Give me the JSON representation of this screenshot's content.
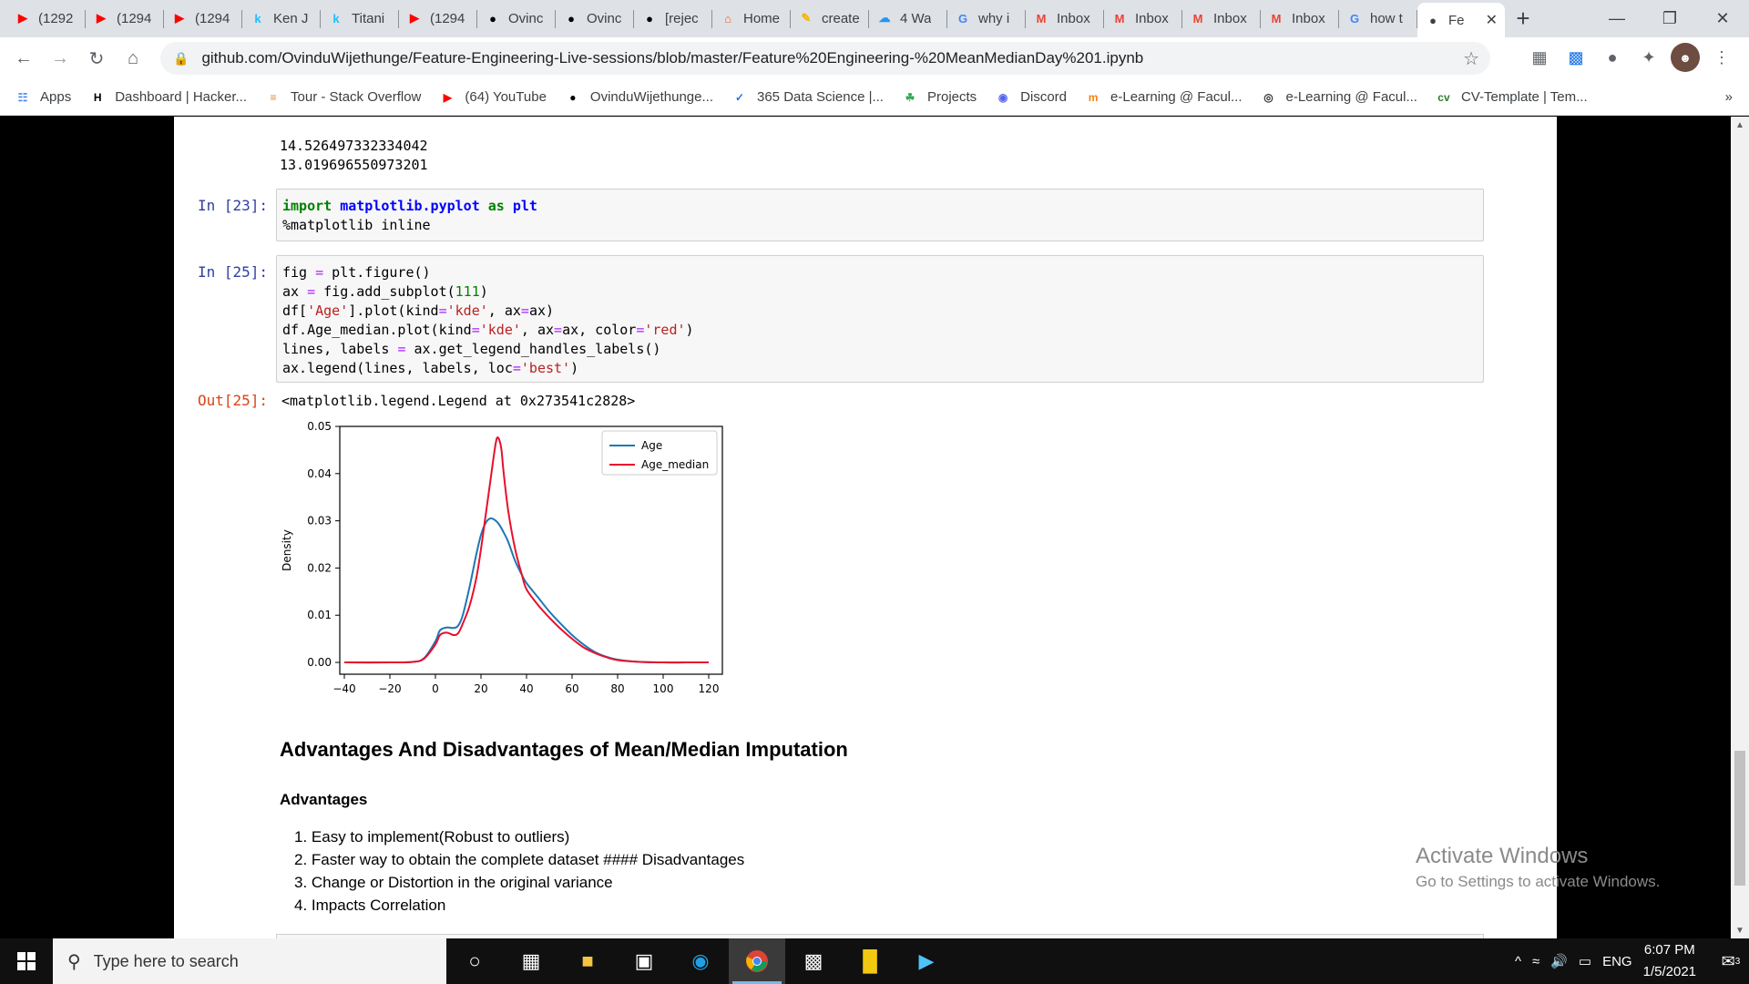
{
  "tabs": [
    {
      "icon": "youtube-icon",
      "label": "(1292",
      "color": "#ff0000"
    },
    {
      "icon": "youtube-icon",
      "label": "(1294",
      "color": "#ff0000"
    },
    {
      "icon": "youtube-icon",
      "label": "(1294",
      "color": "#ff0000"
    },
    {
      "icon": "kaggle-icon",
      "label": "Ken J",
      "color": "#20beff"
    },
    {
      "icon": "kaggle-icon",
      "label": "Titani",
      "color": "#20beff"
    },
    {
      "icon": "youtube-icon",
      "label": "(1294",
      "color": "#ff0000"
    },
    {
      "icon": "github-icon",
      "label": "Ovinc",
      "color": "#000000"
    },
    {
      "icon": "github-icon",
      "label": "Ovinc",
      "color": "#000000"
    },
    {
      "icon": "github-icon",
      "label": "[rejec",
      "color": "#000000"
    },
    {
      "icon": "home-icon",
      "label": "Home",
      "color": "#f26522"
    },
    {
      "icon": "edit-icon",
      "label": "create",
      "color": "#f4b400"
    },
    {
      "icon": "cloud-icon",
      "label": "4 Wa",
      "color": "#2196f3"
    },
    {
      "icon": "google-icon",
      "label": "why i",
      "color": "#4285f4"
    },
    {
      "icon": "gmail-icon",
      "label": "Inbox",
      "color": "#ea4335"
    },
    {
      "icon": "gmail-icon",
      "label": "Inbox",
      "color": "#ea4335"
    },
    {
      "icon": "gmail-icon",
      "label": "Inbox",
      "color": "#ea4335"
    },
    {
      "icon": "gmail-icon",
      "label": "Inbox",
      "color": "#ea4335"
    },
    {
      "icon": "google-icon",
      "label": "how t",
      "color": "#4285f4"
    }
  ],
  "active_tab": {
    "icon": "github-icon",
    "label": "Fe"
  },
  "address_bar": {
    "url": "github.com/OvinduWijethunge/Feature-Engineering-Live-sessions/blob/master/Feature%20Engineering-%20MeanMedianDay%201.ipynb"
  },
  "bookmarks": [
    {
      "icon": "apps-icon",
      "label": "Apps",
      "color": "#4285f4"
    },
    {
      "icon": "hackerrank-icon",
      "label": "Dashboard | Hacker...",
      "color": "#000000"
    },
    {
      "icon": "stackoverflow-icon",
      "label": "Tour - Stack Overflow",
      "color": "#f48024"
    },
    {
      "icon": "youtube-icon",
      "label": "(64) YouTube",
      "color": "#ff0000"
    },
    {
      "icon": "github-icon",
      "label": "OvinduWijethunge...",
      "color": "#000000"
    },
    {
      "icon": "datascience-icon",
      "label": "365 Data Science |...",
      "color": "#1a73e8"
    },
    {
      "icon": "projects-icon",
      "label": "Projects",
      "color": "#34a853"
    },
    {
      "icon": "discord-icon",
      "label": "Discord",
      "color": "#5865f2"
    },
    {
      "icon": "moodle-icon",
      "label": "e-Learning @ Facul...",
      "color": "#f98012"
    },
    {
      "icon": "globe-icon",
      "label": "e-Learning @ Facul...",
      "color": "#333333"
    },
    {
      "icon": "cv-icon",
      "label": "CV-Template | Tem...",
      "color": "#2e7d32"
    }
  ],
  "output_prev": [
    "14.526497332334042",
    "13.019696550973201"
  ],
  "cell23": {
    "prompt": "In [23]:"
  },
  "cell25": {
    "prompt": "In [25]:",
    "out_prompt": "Out[25]:",
    "out_text": "<matplotlib.legend.Legend at 0x273541c2828>"
  },
  "chart_data": {
    "type": "line",
    "title": "",
    "xlabel": "",
    "ylabel": "Density",
    "xlim": [
      -42,
      126
    ],
    "ylim": [
      -0.0025,
      0.05
    ],
    "xticks": [
      -40,
      -20,
      0,
      20,
      40,
      60,
      80,
      100,
      120
    ],
    "yticks": [
      0.0,
      0.01,
      0.02,
      0.03,
      0.04,
      0.05
    ],
    "ytick_labels": [
      "0.00",
      "0.01",
      "0.02",
      "0.03",
      "0.04",
      "0.05"
    ],
    "legend_position": "top-right",
    "series": [
      {
        "name": "Age",
        "color": "#1f77b4",
        "x": [
          -40,
          -20,
          -10,
          -5,
          0,
          2,
          5,
          8,
          10,
          12,
          15,
          18,
          20,
          22,
          24,
          26,
          28,
          30,
          32,
          35,
          38,
          40,
          45,
          50,
          55,
          60,
          65,
          70,
          75,
          80,
          90,
          100,
          110,
          120
        ],
        "y": [
          0,
          0,
          0.0001,
          0.0009,
          0.0045,
          0.0068,
          0.0074,
          0.0073,
          0.0078,
          0.01,
          0.016,
          0.023,
          0.027,
          0.0295,
          0.0305,
          0.0302,
          0.0292,
          0.0275,
          0.0255,
          0.0215,
          0.0185,
          0.0168,
          0.0138,
          0.0108,
          0.0082,
          0.0058,
          0.0038,
          0.0022,
          0.0012,
          0.0006,
          0.0001,
          0,
          0,
          0
        ]
      },
      {
        "name": "Age_median",
        "color": "#e8102c",
        "x": [
          -40,
          -20,
          -10,
          -5,
          0,
          2,
          5,
          8,
          10,
          12,
          15,
          18,
          20,
          22,
          24,
          26,
          27,
          28,
          29,
          30,
          32,
          35,
          38,
          40,
          45,
          50,
          55,
          60,
          65,
          70,
          75,
          80,
          90,
          100,
          110,
          120
        ],
        "y": [
          0,
          0,
          0.0001,
          0.0008,
          0.0038,
          0.0058,
          0.0063,
          0.0058,
          0.0062,
          0.0082,
          0.012,
          0.018,
          0.024,
          0.031,
          0.038,
          0.045,
          0.0475,
          0.0472,
          0.045,
          0.04,
          0.032,
          0.024,
          0.0185,
          0.0155,
          0.0122,
          0.0095,
          0.0071,
          0.005,
          0.0032,
          0.002,
          0.0011,
          0.0005,
          0.0001,
          0,
          0,
          0
        ]
      }
    ]
  },
  "markdown": {
    "heading": "Advantages And Disadvantages of Mean/Median Imputation",
    "subheading": "Advantages",
    "items": [
      "1. Easy to implement(Robust to outliers)",
      "2. Faster way to obtain the complete dataset #### Disadvantages",
      "3. Change or Distortion in the original variance",
      "4. Impacts Correlation"
    ]
  },
  "watermark": {
    "line1": "Activate Windows",
    "line2": "Go to Settings to activate Windows."
  },
  "taskbar": {
    "search_placeholder": "Type here to search",
    "lang": "ENG",
    "time": "6:07 PM",
    "date": "1/5/2021",
    "notif_count": "3"
  }
}
